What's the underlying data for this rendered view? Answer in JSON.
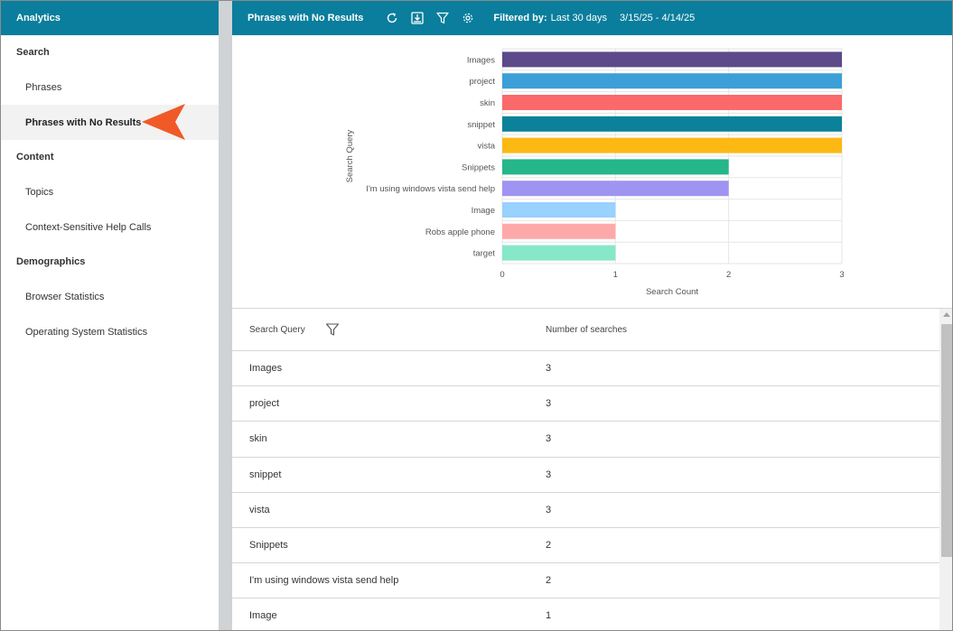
{
  "sidebar": {
    "title": "Analytics",
    "sections": [
      {
        "label": "Search",
        "items": [
          {
            "label": "Phrases",
            "active": false
          },
          {
            "label": "Phrases with No Results",
            "active": true
          }
        ]
      },
      {
        "label": "Content",
        "items": [
          {
            "label": "Topics",
            "active": false
          },
          {
            "label": "Context-Sensitive Help Calls",
            "active": false
          }
        ]
      },
      {
        "label": "Demographics",
        "items": [
          {
            "label": "Browser Statistics",
            "active": false
          },
          {
            "label": "Operating System Statistics",
            "active": false
          }
        ]
      }
    ]
  },
  "toolbar": {
    "title": "Phrases with No Results",
    "icons": [
      "refresh-icon",
      "download-icon",
      "filter-icon",
      "gear-icon"
    ],
    "filter_label": "Filtered by:",
    "filter_value": "Last 30 days",
    "date_range": "3/15/25 - 4/14/25"
  },
  "chart_data": {
    "type": "bar",
    "orientation": "horizontal",
    "categories": [
      "Images",
      "project",
      "skin",
      "snippet",
      "vista",
      "Snippets",
      "I'm using windows vista send help",
      "Image",
      "Robs apple phone",
      "target"
    ],
    "values": [
      3,
      3,
      3,
      3,
      3,
      2,
      2,
      1,
      1,
      1
    ],
    "colors": [
      "#5c4a8a",
      "#3d9fd8",
      "#fb6a6a",
      "#0b8299",
      "#fcb913",
      "#25b68a",
      "#a094f2",
      "#99d1ff",
      "#fea9a9",
      "#86e7c9"
    ],
    "xlabel": "Search Count",
    "ylabel": "Search Query",
    "xlim": [
      0,
      3
    ],
    "xticks": [
      0,
      1,
      2,
      3
    ],
    "grid": true
  },
  "table": {
    "columns": [
      "Search Query",
      "Number of searches"
    ],
    "rows": [
      [
        "Images",
        "3"
      ],
      [
        "project",
        "3"
      ],
      [
        "skin",
        "3"
      ],
      [
        "snippet",
        "3"
      ],
      [
        "vista",
        "3"
      ],
      [
        "Snippets",
        "2"
      ],
      [
        "I'm using windows vista send help",
        "2"
      ],
      [
        "Image",
        "1"
      ]
    ]
  },
  "colors": {
    "header_bg": "#0a7e9c",
    "active_bg": "#f2f2f2",
    "arrow": "#f05a28"
  }
}
